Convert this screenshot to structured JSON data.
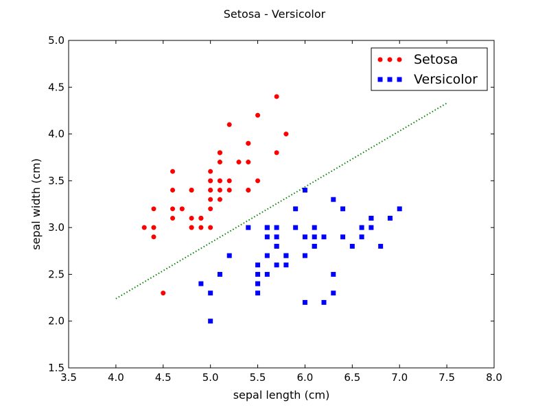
{
  "chart_data": {
    "type": "scatter",
    "title": "Setosa - Versicolor",
    "xlabel": "sepal length (cm)",
    "ylabel": "sepal width (cm)",
    "xlim": [
      3.5,
      8.0
    ],
    "ylim": [
      1.5,
      5.0
    ],
    "xticks": [
      "3.5",
      "4.0",
      "4.5",
      "5.0",
      "5.5",
      "6.0",
      "6.5",
      "7.0",
      "7.5",
      "8.0"
    ],
    "yticks": [
      "1.5",
      "2.0",
      "2.5",
      "3.0",
      "3.5",
      "4.0",
      "4.5",
      "5.0"
    ],
    "grid": false,
    "legend_position": "top-right",
    "series": [
      {
        "name": "Setosa",
        "marker": "circle",
        "color": "#ff0000",
        "points": [
          [
            5.1,
            3.5
          ],
          [
            4.9,
            3.0
          ],
          [
            4.7,
            3.2
          ],
          [
            4.6,
            3.1
          ],
          [
            5.0,
            3.6
          ],
          [
            5.4,
            3.9
          ],
          [
            4.6,
            3.4
          ],
          [
            5.0,
            3.4
          ],
          [
            4.4,
            2.9
          ],
          [
            4.9,
            3.1
          ],
          [
            5.4,
            3.7
          ],
          [
            4.8,
            3.4
          ],
          [
            4.8,
            3.0
          ],
          [
            4.3,
            3.0
          ],
          [
            5.8,
            4.0
          ],
          [
            5.7,
            4.4
          ],
          [
            5.4,
            3.9
          ],
          [
            5.1,
            3.5
          ],
          [
            5.7,
            3.8
          ],
          [
            5.1,
            3.8
          ],
          [
            5.4,
            3.4
          ],
          [
            5.1,
            3.7
          ],
          [
            4.6,
            3.6
          ],
          [
            5.1,
            3.3
          ],
          [
            4.8,
            3.4
          ],
          [
            5.0,
            3.0
          ],
          [
            5.0,
            3.4
          ],
          [
            5.2,
            3.5
          ],
          [
            5.2,
            3.4
          ],
          [
            4.7,
            3.2
          ],
          [
            4.8,
            3.1
          ],
          [
            5.4,
            3.4
          ],
          [
            5.2,
            4.1
          ],
          [
            5.5,
            4.2
          ],
          [
            4.9,
            3.1
          ],
          [
            5.0,
            3.2
          ],
          [
            5.5,
            3.5
          ],
          [
            4.9,
            3.1
          ],
          [
            4.4,
            3.0
          ],
          [
            5.1,
            3.4
          ],
          [
            5.0,
            3.5
          ],
          [
            4.5,
            2.3
          ],
          [
            4.4,
            3.2
          ],
          [
            5.0,
            3.5
          ],
          [
            5.1,
            3.8
          ],
          [
            4.8,
            3.0
          ],
          [
            5.1,
            3.8
          ],
          [
            4.6,
            3.2
          ],
          [
            5.3,
            3.7
          ],
          [
            5.0,
            3.3
          ]
        ]
      },
      {
        "name": "Versicolor",
        "marker": "square",
        "color": "#0000ff",
        "points": [
          [
            7.0,
            3.2
          ],
          [
            6.4,
            3.2
          ],
          [
            6.9,
            3.1
          ],
          [
            5.5,
            2.3
          ],
          [
            6.5,
            2.8
          ],
          [
            5.7,
            2.8
          ],
          [
            6.3,
            3.3
          ],
          [
            4.9,
            2.4
          ],
          [
            6.6,
            2.9
          ],
          [
            5.2,
            2.7
          ],
          [
            5.0,
            2.0
          ],
          [
            5.9,
            3.0
          ],
          [
            6.0,
            2.2
          ],
          [
            6.1,
            2.9
          ],
          [
            5.6,
            2.9
          ],
          [
            6.7,
            3.1
          ],
          [
            5.6,
            3.0
          ],
          [
            5.8,
            2.7
          ],
          [
            6.2,
            2.2
          ],
          [
            5.6,
            2.5
          ],
          [
            5.9,
            3.2
          ],
          [
            6.1,
            2.8
          ],
          [
            6.3,
            2.5
          ],
          [
            6.1,
            2.8
          ],
          [
            6.4,
            2.9
          ],
          [
            6.6,
            3.0
          ],
          [
            6.8,
            2.8
          ],
          [
            6.7,
            3.0
          ],
          [
            6.0,
            2.9
          ],
          [
            5.7,
            2.6
          ],
          [
            5.5,
            2.4
          ],
          [
            5.5,
            2.4
          ],
          [
            5.8,
            2.7
          ],
          [
            6.0,
            2.7
          ],
          [
            5.4,
            3.0
          ],
          [
            6.0,
            3.4
          ],
          [
            6.7,
            3.1
          ],
          [
            6.3,
            2.3
          ],
          [
            5.6,
            3.0
          ],
          [
            5.5,
            2.5
          ],
          [
            5.5,
            2.6
          ],
          [
            6.1,
            3.0
          ],
          [
            5.8,
            2.6
          ],
          [
            5.0,
            2.3
          ],
          [
            5.6,
            2.7
          ],
          [
            5.7,
            3.0
          ],
          [
            5.7,
            2.9
          ],
          [
            6.2,
            2.9
          ],
          [
            5.1,
            2.5
          ],
          [
            5.7,
            2.8
          ]
        ]
      }
    ],
    "decision_boundary": {
      "style": "dotted",
      "color": "#008000",
      "x": [
        4.0,
        7.5
      ],
      "y": [
        2.24,
        4.33
      ]
    }
  }
}
